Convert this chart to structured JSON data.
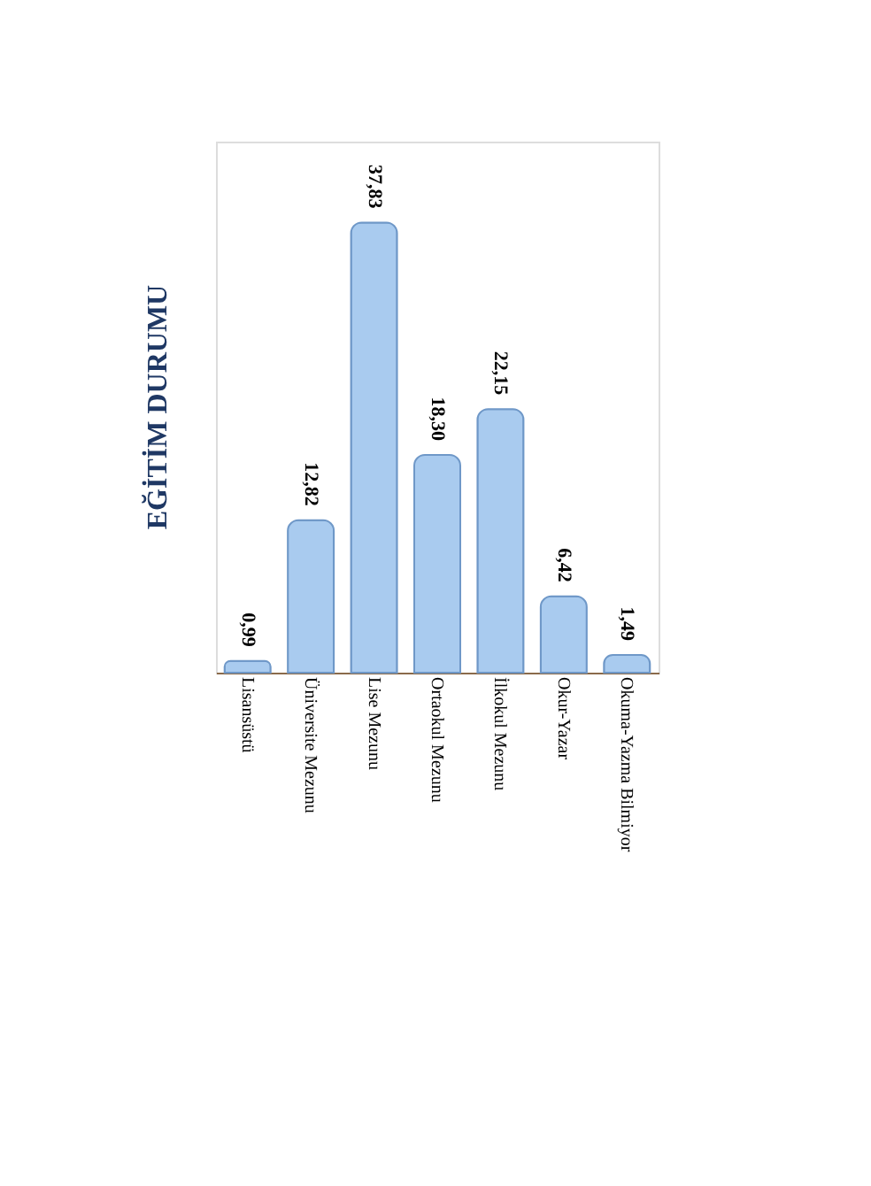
{
  "chart_data": {
    "type": "bar",
    "title": "EĞİTİM DURUMU",
    "categories": [
      "Lisansüstü",
      "Üniversite Mezunu",
      "Lise Mezunu",
      "Ortaokul Mezunu",
      "İlkokul Mezunu",
      "Okur-Yazar",
      "Okuma-Yazma Bilmiyor"
    ],
    "values": [
      0.99,
      12.82,
      37.83,
      18.3,
      22.15,
      6.42,
      1.49
    ],
    "value_labels": [
      "0,99",
      "12,82",
      "37,83",
      "18,30",
      "22,15",
      "6,42",
      "1,49"
    ],
    "color": "#a9cbef",
    "grid": false
  }
}
